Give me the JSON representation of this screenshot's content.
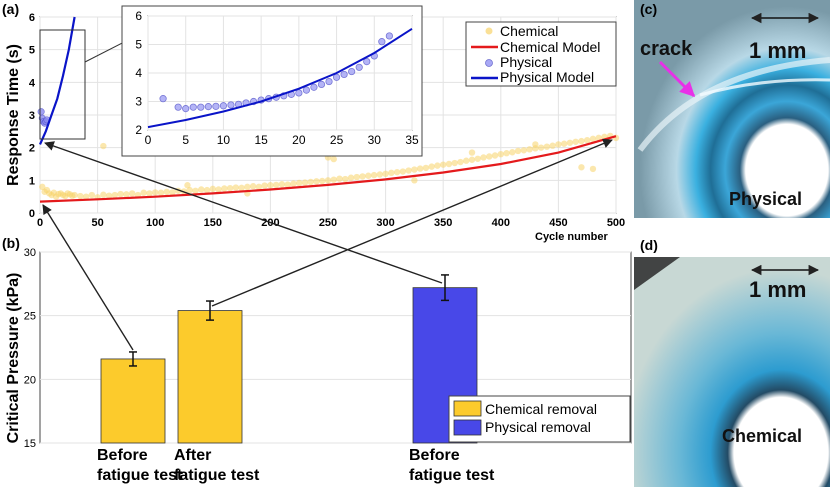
{
  "panels": {
    "a": "(a)",
    "b": "(b)",
    "c": "(c)",
    "d": "(d)"
  },
  "chart_data": [
    {
      "type": "scatter",
      "xlabel": "Cycle number",
      "ylabel": "Response Time (s)",
      "xlim": [
        0,
        500
      ],
      "ylim": [
        0,
        6
      ],
      "xticks": [
        "0",
        "50",
        "100",
        "150",
        "200",
        "250",
        "300",
        "350",
        "400",
        "450",
        "500"
      ],
      "yticks": [
        "0",
        "1",
        "2",
        "3",
        "4",
        "5",
        "6"
      ],
      "grid": true,
      "legend_position": "top-right",
      "legend": [
        "Chemical",
        "Chemical Model",
        "Physical",
        "Physical Model"
      ],
      "series": [
        {
          "name": "Chemical",
          "kind": "points",
          "color": "#f8d36a",
          "x": [
            2,
            4,
            6,
            8,
            10,
            12,
            14,
            16,
            18,
            20,
            22,
            24,
            26,
            28,
            30,
            35,
            40,
            45,
            50,
            55,
            60,
            65,
            70,
            75,
            80,
            85,
            90,
            95,
            100,
            105,
            110,
            115,
            120,
            125,
            130,
            135,
            140,
            145,
            150,
            155,
            160,
            165,
            170,
            175,
            180,
            185,
            190,
            195,
            200,
            205,
            210,
            215,
            220,
            225,
            230,
            235,
            240,
            245,
            250,
            255,
            260,
            265,
            270,
            275,
            280,
            285,
            290,
            295,
            300,
            305,
            310,
            315,
            320,
            325,
            330,
            335,
            340,
            345,
            350,
            355,
            360,
            365,
            370,
            375,
            380,
            385,
            390,
            395,
            400,
            405,
            410,
            415,
            420,
            425,
            430,
            435,
            440,
            445,
            450,
            455,
            460,
            465,
            470,
            475,
            480,
            485,
            490,
            495,
            500,
            55,
            128,
            250,
            255,
            430,
            480,
            470,
            375,
            180,
            325
          ],
          "y": [
            0.8,
            0.65,
            0.7,
            0.6,
            0.55,
            0.62,
            0.5,
            0.58,
            0.6,
            0.55,
            0.52,
            0.6,
            0.57,
            0.53,
            0.55,
            0.52,
            0.5,
            0.55,
            0.48,
            0.56,
            0.53,
            0.55,
            0.58,
            0.57,
            0.6,
            0.55,
            0.62,
            0.6,
            0.63,
            0.62,
            0.65,
            0.63,
            0.68,
            0.66,
            0.7,
            0.68,
            0.72,
            0.7,
            0.74,
            0.72,
            0.75,
            0.76,
            0.78,
            0.77,
            0.8,
            0.82,
            0.8,
            0.84,
            0.85,
            0.86,
            0.88,
            0.87,
            0.9,
            0.92,
            0.93,
            0.95,
            0.97,
            0.98,
            1.0,
            1.02,
            1.05,
            1.04,
            1.08,
            1.1,
            1.12,
            1.14,
            1.16,
            1.18,
            1.2,
            1.23,
            1.25,
            1.27,
            1.3,
            1.33,
            1.36,
            1.38,
            1.42,
            1.45,
            1.48,
            1.5,
            1.53,
            1.56,
            1.6,
            1.63,
            1.66,
            1.7,
            1.73,
            1.76,
            1.8,
            1.83,
            1.86,
            1.9,
            1.92,
            1.95,
            1.98,
            2.0,
            2.03,
            2.06,
            2.1,
            2.12,
            2.15,
            2.18,
            2.2,
            2.23,
            2.27,
            2.3,
            2.33,
            2.36,
            2.3,
            2.05,
            0.85,
            1.7,
            1.65,
            2.1,
            1.35,
            1.4,
            1.85,
            0.6,
            1.0
          ]
        },
        {
          "name": "Chemical Model",
          "kind": "line",
          "color": "#e41a1c",
          "x": [
            0,
            50,
            100,
            150,
            200,
            250,
            300,
            350,
            400,
            450,
            500
          ],
          "y": [
            0.35,
            0.42,
            0.5,
            0.6,
            0.72,
            0.86,
            1.03,
            1.24,
            1.5,
            1.85,
            2.35
          ]
        },
        {
          "name": "Physical",
          "kind": "points",
          "color": "#8a8aee",
          "x": [
            1,
            2,
            3,
            4,
            5,
            6
          ],
          "y": [
            3.1,
            2.9,
            2.8,
            2.75,
            2.8,
            2.85
          ]
        },
        {
          "name": "Physical Model",
          "kind": "line",
          "color": "#0a14c8",
          "x": [
            0,
            5,
            10,
            15,
            20,
            25,
            30
          ],
          "y": [
            2.1,
            2.5,
            3.0,
            3.5,
            4.2,
            5.0,
            6.0
          ]
        }
      ],
      "inset": {
        "xlim": [
          0,
          35
        ],
        "ylim": [
          2,
          6
        ],
        "xticks": [
          "0",
          "5",
          "10",
          "15",
          "20",
          "25",
          "30",
          "35"
        ],
        "yticks": [
          "2",
          "3",
          "4",
          "5",
          "6"
        ],
        "points": {
          "x": [
            2,
            4,
            5,
            6,
            7,
            8,
            9,
            10,
            11,
            12,
            13,
            14,
            15,
            16,
            17,
            18,
            19,
            20,
            21,
            22,
            23,
            24,
            25,
            26,
            27,
            28,
            29,
            30,
            31,
            32
          ],
          "y": [
            3.1,
            2.8,
            2.75,
            2.8,
            2.8,
            2.82,
            2.83,
            2.85,
            2.88,
            2.9,
            2.95,
            3.0,
            3.05,
            3.1,
            3.15,
            3.2,
            3.25,
            3.3,
            3.4,
            3.5,
            3.6,
            3.7,
            3.85,
            3.95,
            4.05,
            4.2,
            4.4,
            4.6,
            5.1,
            5.3
          ]
        },
        "line": {
          "x": [
            0,
            5,
            10,
            15,
            20,
            25,
            30,
            35
          ],
          "y": [
            2.1,
            2.35,
            2.65,
            3.0,
            3.45,
            4.0,
            4.7,
            5.55
          ]
        }
      }
    },
    {
      "type": "bar",
      "ylabel": "Critical Pressure (kPa)",
      "ylim": [
        15,
        30
      ],
      "yticks": [
        "15",
        "20",
        "25",
        "30"
      ],
      "categories": [
        "Before fatigue test",
        "After fatigue test",
        "Before fatigue test"
      ],
      "category_lines": [
        [
          "Before",
          "fatigue test"
        ],
        [
          "After",
          "fatigue test"
        ],
        [
          "Before",
          "fatigue test"
        ]
      ],
      "values": [
        21.6,
        25.4,
        27.2
      ],
      "errors": [
        0.55,
        0.75,
        1.0
      ],
      "colors": [
        "#fccb2c",
        "#fccb2c",
        "#4848e8"
      ],
      "legend_position": "bottom-right",
      "legend": [
        {
          "label": "Chemical removal",
          "color": "#fccb2c"
        },
        {
          "label": "Physical removal",
          "color": "#4848e8"
        }
      ]
    }
  ],
  "photos": {
    "c": {
      "annotation": "crack",
      "scale": "1 mm",
      "caption": "Physical"
    },
    "d": {
      "scale": "1 mm",
      "caption": "Chemical"
    }
  }
}
